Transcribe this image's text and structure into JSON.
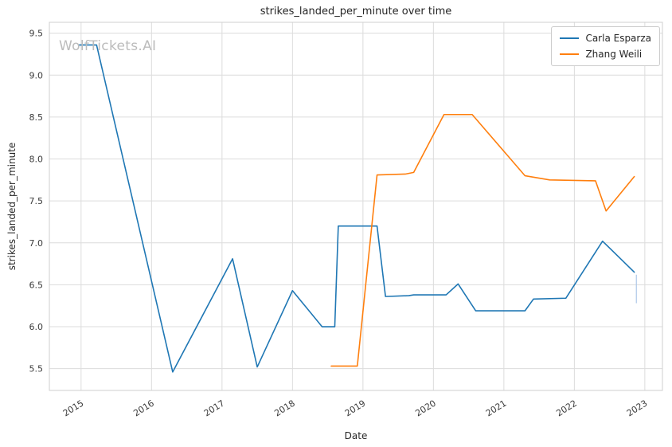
{
  "watermark": {
    "text": "WolfTickets.AI"
  },
  "chart_data": {
    "type": "line",
    "title": "strikes_landed_per_minute over time",
    "xlabel": "Date",
    "ylabel": "strikes_landed_per_minute",
    "xlim": [
      2014.55,
      2023.25
    ],
    "ylim": [
      5.24,
      9.63
    ],
    "x_ticks": [
      2015,
      2016,
      2017,
      2018,
      2019,
      2020,
      2021,
      2022,
      2023
    ],
    "y_ticks": [
      5.5,
      6.0,
      6.5,
      7.0,
      7.5,
      8.0,
      8.5,
      9.0,
      9.5
    ],
    "grid": true,
    "legend_position": "upper right",
    "colors": {
      "grid": "#dcdcdc",
      "axis_border": "#cfcfcf",
      "tick_text": "#3b3b3b",
      "artifact": "#aec7e8"
    },
    "series": [
      {
        "name": "Carla Esparza",
        "color": "#1f77b4",
        "points": [
          [
            2014.97,
            9.36
          ],
          [
            2015.22,
            9.36
          ],
          [
            2016.3,
            5.46
          ],
          [
            2017.15,
            6.81
          ],
          [
            2017.5,
            5.52
          ],
          [
            2018.0,
            6.43
          ],
          [
            2018.42,
            6.0
          ],
          [
            2018.6,
            6.0
          ],
          [
            2018.65,
            7.2
          ],
          [
            2019.2,
            7.2
          ],
          [
            2019.32,
            6.36
          ],
          [
            2019.65,
            6.37
          ],
          [
            2019.72,
            6.38
          ],
          [
            2020.18,
            6.38
          ],
          [
            2020.35,
            6.51
          ],
          [
            2020.6,
            6.19
          ],
          [
            2021.3,
            6.19
          ],
          [
            2021.42,
            6.33
          ],
          [
            2021.88,
            6.34
          ],
          [
            2022.4,
            7.02
          ],
          [
            2022.85,
            6.65
          ]
        ]
      },
      {
        "name": "Zhang Weili",
        "color": "#ff7f0e",
        "points": [
          [
            2018.55,
            5.53
          ],
          [
            2018.92,
            5.53
          ],
          [
            2019.2,
            7.81
          ],
          [
            2019.6,
            7.82
          ],
          [
            2019.72,
            7.84
          ],
          [
            2020.15,
            8.53
          ],
          [
            2020.55,
            8.53
          ],
          [
            2021.3,
            7.8
          ],
          [
            2021.65,
            7.75
          ],
          [
            2022.3,
            7.74
          ],
          [
            2022.45,
            7.38
          ],
          [
            2022.85,
            7.79
          ]
        ]
      }
    ],
    "artifact_line": {
      "x": 2022.88,
      "y1": 6.28,
      "y2": 6.62
    }
  }
}
